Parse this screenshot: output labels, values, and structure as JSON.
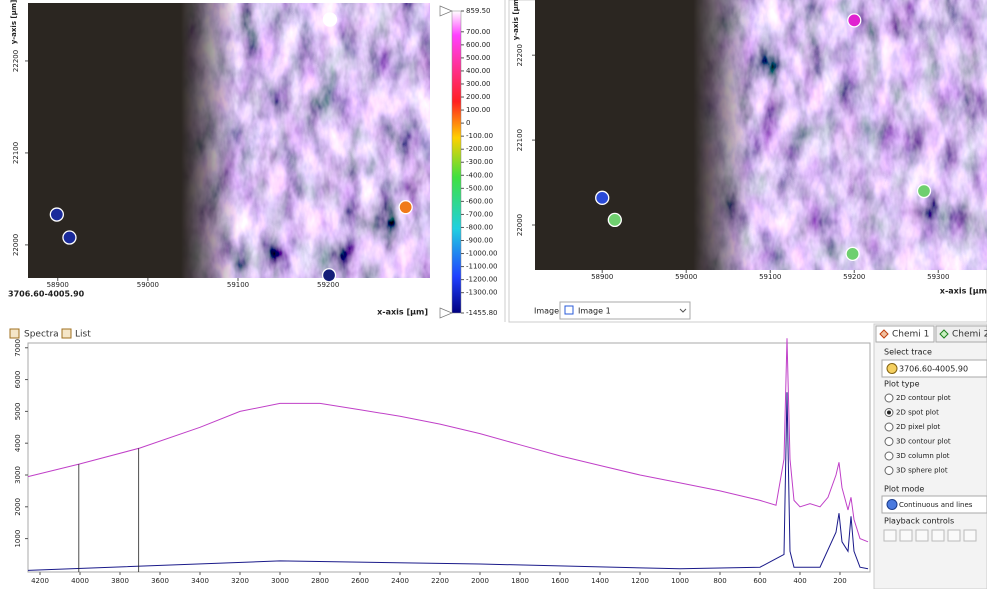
{
  "image_left": {
    "y_axis_label": "y-axis [µm]",
    "x_axis_label": "x-axis [µm]",
    "range_label": "3706.60-4005.90",
    "xlim": [
      58867,
      59313
    ],
    "ylim": [
      21964,
      22263
    ],
    "xticks": [
      58900,
      59000,
      59100,
      59200
    ],
    "yticks": [
      22000,
      22100,
      22200
    ],
    "spots": [
      {
        "x": 58899,
        "y": 22033,
        "color": "#1a2a9a"
      },
      {
        "x": 58913,
        "y": 22008,
        "color": "#1a2a9a"
      },
      {
        "x": 59202,
        "y": 22245,
        "color": "#ffffff"
      },
      {
        "x": 59286,
        "y": 22041,
        "color": "#f07a1a"
      },
      {
        "x": 59201,
        "y": 21967,
        "color": "#141e78"
      }
    ]
  },
  "colorbar": {
    "lim": [
      -1455.8,
      859.5
    ],
    "ticks": [
      {
        "value": 859.5,
        "label": "859.50"
      },
      {
        "value": 700,
        "label": "700.00"
      },
      {
        "value": 600,
        "label": "600.00"
      },
      {
        "value": 500,
        "label": "500.00"
      },
      {
        "value": 400,
        "label": "400.00"
      },
      {
        "value": 300,
        "label": "300.00"
      },
      {
        "value": 200,
        "label": "200.00"
      },
      {
        "value": 100,
        "label": "100.00"
      },
      0,
      {
        "value": -100,
        "label": "-100.00"
      },
      {
        "value": -200,
        "label": "-200.00"
      },
      {
        "value": -300,
        "label": "-300.00"
      },
      {
        "value": -400,
        "label": "-400.00"
      },
      {
        "value": -500,
        "label": "-500.00"
      },
      {
        "value": -600,
        "label": "-600.00"
      },
      {
        "value": -700,
        "label": "-700.00"
      },
      {
        "value": -800,
        "label": "-800.00"
      },
      {
        "value": -900,
        "label": "-900.00"
      },
      {
        "value": -1000,
        "label": "-1000.00"
      },
      {
        "value": -1100,
        "label": "-1100.00"
      },
      {
        "value": -1200,
        "label": "-1200.00"
      },
      {
        "value": -1300,
        "label": "-1300.00"
      },
      {
        "value": -1455.8,
        "label": "-1455.80"
      }
    ]
  },
  "image_right": {
    "y_axis_label": "y-axis [µm]",
    "x_axis_label": "x-axis [µm",
    "xlim": [
      58820,
      59358
    ],
    "ylim": [
      21947,
      22265
    ],
    "xticks": [
      58900,
      59000,
      59100,
      59200,
      59300
    ],
    "yticks": [
      22000,
      22100,
      22200
    ],
    "spots": [
      {
        "x": 58900,
        "y": 22032,
        "color": "#2a4ad8"
      },
      {
        "x": 58915,
        "y": 22006,
        "color": "#6fcf6f"
      },
      {
        "x": 59200,
        "y": 22241,
        "color": "#e020d0"
      },
      {
        "x": 59283,
        "y": 22040,
        "color": "#6fcf6f"
      },
      {
        "x": 59198,
        "y": 21966,
        "color": "#6fcf6f"
      }
    ]
  },
  "image_selector": {
    "label": "Image:",
    "value": "Image 1"
  },
  "tabs": [
    "Spectra",
    "List"
  ],
  "spectrum": {
    "xlim": [
      4260,
      50
    ],
    "ylim": [
      -50,
      7150
    ],
    "xticks": [
      4200,
      4000,
      3800,
      3600,
      3400,
      3200,
      3000,
      2800,
      2600,
      2400,
      2200,
      2000,
      1800,
      1600,
      1400,
      1200,
      1000,
      800,
      600,
      400,
      200
    ],
    "yticks": [
      1000,
      2000,
      3000,
      4000,
      5000,
      6000,
      7000
    ],
    "markers": [
      4005.9,
      3706.6
    ],
    "series": [
      {
        "color": "#c040c8",
        "x": [
          4260,
          4000,
          3700,
          3400,
          3200,
          3000,
          2800,
          2600,
          2400,
          2200,
          2000,
          1800,
          1600,
          1400,
          1200,
          1000,
          800,
          600,
          520,
          480,
          465,
          450,
          430,
          400,
          350,
          300,
          260,
          220,
          205,
          190,
          160,
          145,
          130,
          100,
          60
        ],
        "values": [
          2950,
          3350,
          3850,
          4500,
          5000,
          5250,
          5250,
          5050,
          4850,
          4600,
          4300,
          3950,
          3600,
          3300,
          3000,
          2750,
          2500,
          2200,
          2050,
          3500,
          7300,
          3500,
          2200,
          2000,
          2100,
          2000,
          2300,
          3000,
          3400,
          2600,
          1900,
          2300,
          1600,
          1000,
          900
        ]
      },
      {
        "color": "#1a1a8a",
        "x": [
          4260,
          3000,
          2000,
          1000,
          600,
          480,
          465,
          450,
          430,
          300,
          220,
          205,
          190,
          160,
          145,
          130,
          100,
          60
        ],
        "values": [
          0,
          300,
          200,
          50,
          100,
          500,
          5600,
          600,
          100,
          100,
          1200,
          1800,
          900,
          600,
          1700,
          600,
          100,
          50
        ]
      }
    ]
  },
  "side_panel": {
    "tabs": [
      "Chemi 1",
      "Chemi 2"
    ],
    "select_trace_label": "Select trace",
    "trace": "3706.60-4005.90",
    "plot_type_label": "Plot type",
    "plot_types": [
      "2D contour plot",
      "2D spot plot",
      "2D pixel plot",
      "3D contour plot",
      "3D column plot",
      "3D sphere plot"
    ],
    "selected_plot_type": 1,
    "plot_mode_label": "Plot mode",
    "plot_mode": "Continuous and lines",
    "playback_label": "Playback controls"
  }
}
